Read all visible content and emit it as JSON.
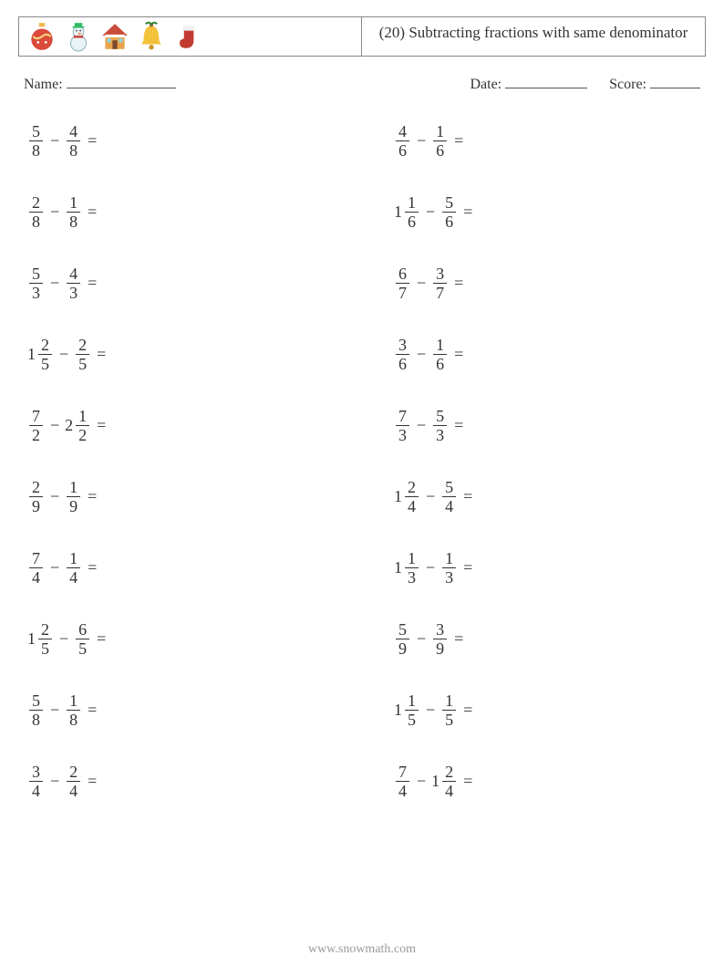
{
  "header": {
    "title": "(20) Subtracting fractions with same denominator",
    "icons": [
      "ornament-icon",
      "snowman-icon",
      "house-icon",
      "bell-icon",
      "stocking-icon"
    ]
  },
  "info": {
    "name_label": "Name:",
    "date_label": "Date:",
    "score_label": "Score:"
  },
  "style": {
    "text_color": "#333333",
    "border_color": "#888888",
    "blank_color": "#555555",
    "footer_color": "#999999",
    "background_color": "#ffffff",
    "title_fontsize": 17,
    "body_fontsize": 18,
    "info_fontsize": 16,
    "footer_fontsize": 14,
    "row_gap": 30,
    "col_gap": 70
  },
  "problems": {
    "left": [
      {
        "a": {
          "n": 5,
          "d": 8
        },
        "b": {
          "n": 4,
          "d": 8
        }
      },
      {
        "a": {
          "n": 2,
          "d": 8
        },
        "b": {
          "n": 1,
          "d": 8
        }
      },
      {
        "a": {
          "n": 5,
          "d": 3
        },
        "b": {
          "n": 4,
          "d": 3
        }
      },
      {
        "a": {
          "w": 1,
          "n": 2,
          "d": 5
        },
        "b": {
          "n": 2,
          "d": 5
        }
      },
      {
        "a": {
          "n": 7,
          "d": 2
        },
        "b": {
          "w": 2,
          "n": 1,
          "d": 2
        }
      },
      {
        "a": {
          "n": 2,
          "d": 9
        },
        "b": {
          "n": 1,
          "d": 9
        }
      },
      {
        "a": {
          "n": 7,
          "d": 4
        },
        "b": {
          "n": 1,
          "d": 4
        }
      },
      {
        "a": {
          "w": 1,
          "n": 2,
          "d": 5
        },
        "b": {
          "n": 6,
          "d": 5
        }
      },
      {
        "a": {
          "n": 5,
          "d": 8
        },
        "b": {
          "n": 1,
          "d": 8
        }
      },
      {
        "a": {
          "n": 3,
          "d": 4
        },
        "b": {
          "n": 2,
          "d": 4
        }
      }
    ],
    "right": [
      {
        "a": {
          "n": 4,
          "d": 6
        },
        "b": {
          "n": 1,
          "d": 6
        }
      },
      {
        "a": {
          "w": 1,
          "n": 1,
          "d": 6
        },
        "b": {
          "n": 5,
          "d": 6
        }
      },
      {
        "a": {
          "n": 6,
          "d": 7
        },
        "b": {
          "n": 3,
          "d": 7
        }
      },
      {
        "a": {
          "n": 3,
          "d": 6
        },
        "b": {
          "n": 1,
          "d": 6
        }
      },
      {
        "a": {
          "n": 7,
          "d": 3
        },
        "b": {
          "n": 5,
          "d": 3
        }
      },
      {
        "a": {
          "w": 1,
          "n": 2,
          "d": 4
        },
        "b": {
          "n": 5,
          "d": 4
        }
      },
      {
        "a": {
          "w": 1,
          "n": 1,
          "d": 3
        },
        "b": {
          "n": 1,
          "d": 3
        }
      },
      {
        "a": {
          "n": 5,
          "d": 9
        },
        "b": {
          "n": 3,
          "d": 9
        }
      },
      {
        "a": {
          "w": 1,
          "n": 1,
          "d": 5
        },
        "b": {
          "n": 1,
          "d": 5
        }
      },
      {
        "a": {
          "n": 7,
          "d": 4
        },
        "b": {
          "w": 1,
          "n": 2,
          "d": 4
        }
      }
    ]
  },
  "footer": {
    "text": "www.snowmath.com"
  }
}
